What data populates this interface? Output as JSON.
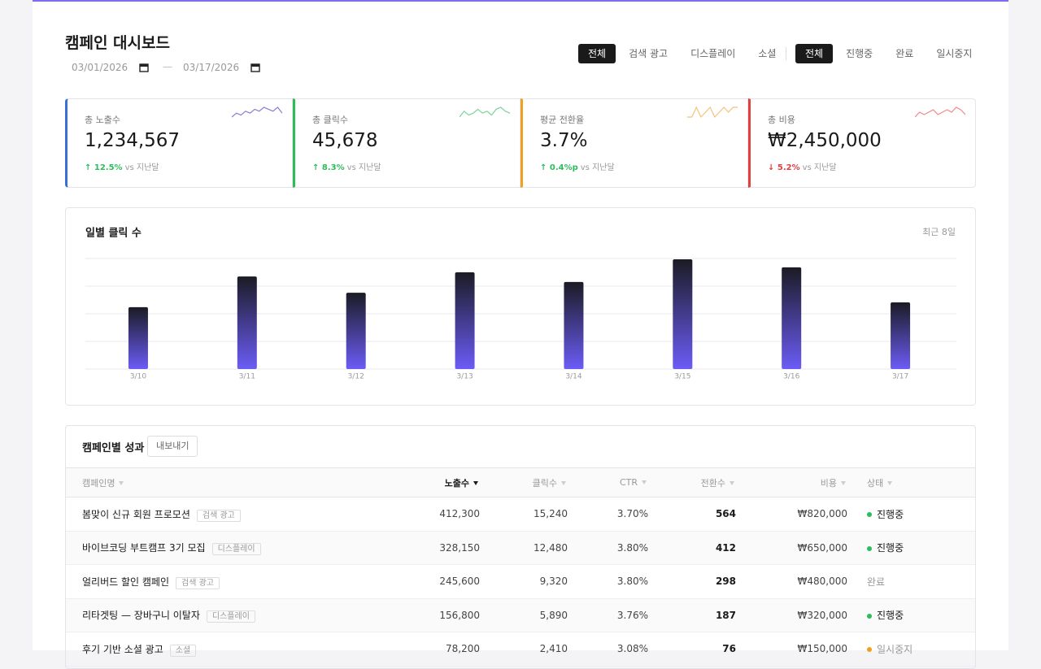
{
  "header": {
    "title": "캠페인 대시보드",
    "date_from": "03/01/2026",
    "date_separator": "—",
    "date_to": "03/17/2026",
    "type_filters": [
      "전체",
      "검색 광고",
      "디스플레이",
      "소셜"
    ],
    "type_active": 0,
    "status_filters": [
      "전체",
      "진행중",
      "완료",
      "일시중지"
    ],
    "status_active": 0
  },
  "kpis": [
    {
      "label": "총 노출수",
      "value": "1,234,567",
      "change": "↑ 12.5%",
      "compare": "vs 지난달",
      "trend": "up",
      "color": "#3b6fd8",
      "spark_color": "#8f7ad8",
      "sparkline": [
        5,
        7,
        6,
        8,
        7,
        9,
        8,
        10,
        9,
        8,
        10,
        7
      ]
    },
    {
      "label": "총 클릭수",
      "value": "45,678",
      "change": "↑ 8.3%",
      "compare": "vs 지난달",
      "trend": "up",
      "color": "#2dbb5c",
      "spark_color": "#7cd39a",
      "sparkline": [
        5,
        8,
        6,
        7,
        9,
        7,
        8,
        6,
        9,
        10,
        8,
        7
      ]
    },
    {
      "label": "평균 전환율",
      "value": "3.7%",
      "change": "↑ 0.4%p",
      "compare": "vs 지난달",
      "trend": "up",
      "color": "#f0a020",
      "spark_color": "#f5c27a",
      "sparkline": [
        8,
        8,
        8.2,
        8,
        8.1,
        8.2,
        8,
        8.1,
        8.2,
        8.1,
        8.2,
        8.2
      ]
    },
    {
      "label": "총 비용",
      "value": "₩2,450,000",
      "change": "↓ 5.2%",
      "compare": "vs 지난달",
      "trend": "down",
      "color": "#e04040",
      "spark_color": "#ee8a88",
      "sparkline": [
        6,
        8,
        7,
        8,
        9,
        7,
        8,
        9,
        8,
        10,
        9,
        7
      ]
    }
  ],
  "chart_data": {
    "type": "bar",
    "title": "일별 클릭 수",
    "subtitle": "최근 8일",
    "categories": [
      "3/10",
      "3/11",
      "3/12",
      "3/13",
      "3/14",
      "3/15",
      "3/16",
      "3/17"
    ],
    "values": [
      2240,
      3350,
      2760,
      3500,
      3150,
      3970,
      3680,
      2410
    ],
    "ylim": [
      0,
      4000
    ],
    "yticks": [
      0,
      1000,
      2000,
      3000,
      4000
    ],
    "grid": true
  },
  "table": {
    "title": "캠페인별 성과",
    "export": "내보내기",
    "columns": [
      "캠페인명",
      "노출수",
      "클릭수",
      "CTR",
      "전환수",
      "비용",
      "상태"
    ],
    "sorted_column": 1,
    "rows": [
      [
        "봄맞이 신규 회원 프로모션",
        "검색 광고",
        "412,300",
        "15,240",
        "3.70%",
        "564",
        "₩820,000",
        "진행중"
      ],
      [
        "바이브코딩 부트캠프 3기 모집",
        "디스플레이",
        "328,150",
        "12,480",
        "3.80%",
        "412",
        "₩650,000",
        "진행중"
      ],
      [
        "얼리버드 할인 캠페인",
        "검색 광고",
        "245,600",
        "9,320",
        "3.80%",
        "298",
        "₩480,000",
        "완료"
      ],
      [
        "리타겟팅 — 장바구니 이탈자",
        "디스플레이",
        "156,800",
        "5,890",
        "3.76%",
        "187",
        "₩320,000",
        "진행중"
      ],
      [
        "후기 기반 소셜 광고",
        "소셜",
        "78,200",
        "2,410",
        "3.08%",
        "76",
        "₩150,000",
        "일시중지"
      ]
    ],
    "status_colors": {
      "진행중": "#2dbb5c",
      "일시중지": "#f0a020"
    }
  }
}
